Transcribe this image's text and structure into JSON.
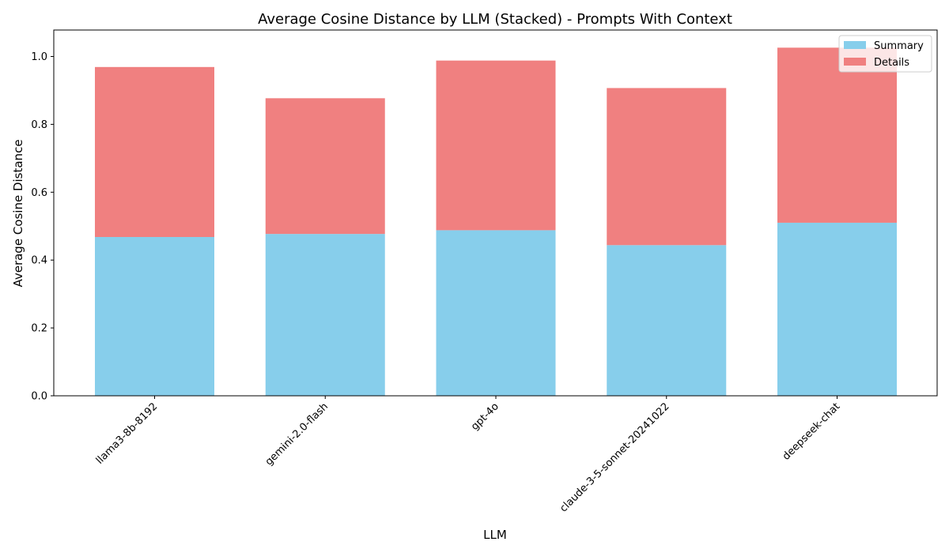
{
  "chart_data": {
    "type": "bar",
    "stacked": true,
    "title": "Average Cosine Distance by LLM (Stacked) - Prompts With Context",
    "xlabel": "LLM",
    "ylabel": "Average Cosine Distance",
    "categories": [
      "llama3-8b-8192",
      "gemini-2.0-flash",
      "gpt-4o",
      "claude-3-5-sonnet-20241022",
      "deepseek-chat"
    ],
    "series": [
      {
        "name": "Summary",
        "color": "#87ceeb",
        "values": [
          0.468,
          0.477,
          0.488,
          0.444,
          0.51
        ]
      },
      {
        "name": "Details",
        "color": "#f08080",
        "values": [
          0.501,
          0.4,
          0.5,
          0.463,
          0.516
        ]
      }
    ],
    "ylim": [
      0,
      1.078
    ],
    "yticks": [
      0.0,
      0.2,
      0.4,
      0.6,
      0.8,
      1.0
    ],
    "ytick_labels": [
      "0.0",
      "0.2",
      "0.4",
      "0.6",
      "0.8",
      "1.0"
    ],
    "grid": false,
    "legend_position": "top-right"
  }
}
